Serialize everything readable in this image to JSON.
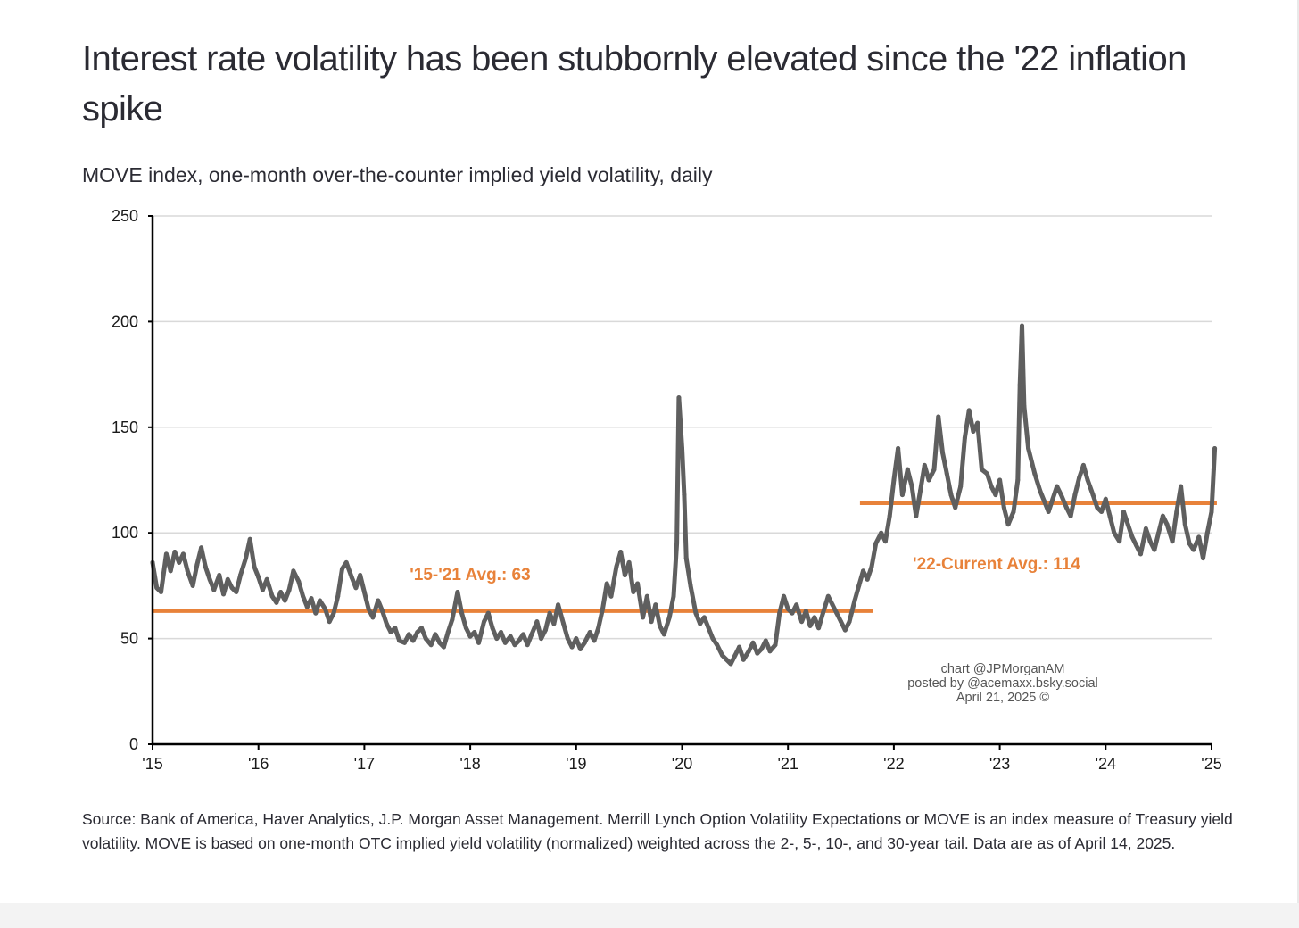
{
  "title": "Interest rate volatility has been stubbornly elevated since the '22 inflation spike",
  "subtitle": "MOVE index, one-month over-the-counter implied yield volatility, daily",
  "footnote": "Source: Bank of America, Haver Analytics, J.P. Morgan Asset Management. Merrill Lynch Option Volatility Expectations or MOVE is an index measure of Treasury yield volatility. MOVE is based on one-month OTC implied yield volatility (normalized) weighted across the 2-, 5-, 10-, and 30-year tail. Data are as of April 14, 2025.",
  "colors": {
    "line": "#5f5f5f",
    "average": "#e8823a",
    "annotation_text": "#e8823a",
    "grid": "#d9d9d9",
    "axis": "#000000",
    "text": "#2b2b33"
  },
  "chart_data": {
    "type": "line",
    "xlabel": "",
    "ylabel": "",
    "ylim": [
      0,
      250
    ],
    "xlim": [
      2015.0,
      2025.0
    ],
    "yticks": [
      0,
      50,
      100,
      150,
      200,
      250
    ],
    "ytick_labels": [
      "0",
      "50",
      "100",
      "150",
      "200",
      "250"
    ],
    "xticks": [
      2015,
      2016,
      2017,
      2018,
      2019,
      2020,
      2021,
      2022,
      2023,
      2024,
      2025
    ],
    "xtick_labels": [
      "'15",
      "'16",
      "'17",
      "'18",
      "'19",
      "'20",
      "'21",
      "'22",
      "'23",
      "'24",
      "'25"
    ],
    "grid": "horizontal",
    "series": [
      {
        "values": [
          [
            2015.0,
            86
          ],
          [
            2015.04,
            74
          ],
          [
            2015.08,
            72
          ],
          [
            2015.13,
            90
          ],
          [
            2015.17,
            82
          ],
          [
            2015.21,
            91
          ],
          [
            2015.25,
            86
          ],
          [
            2015.29,
            90
          ],
          [
            2015.33,
            82
          ],
          [
            2015.38,
            75
          ],
          [
            2015.42,
            85
          ],
          [
            2015.46,
            93
          ],
          [
            2015.5,
            84
          ],
          [
            2015.54,
            78
          ],
          [
            2015.58,
            73
          ],
          [
            2015.63,
            80
          ],
          [
            2015.67,
            71
          ],
          [
            2015.71,
            78
          ],
          [
            2015.75,
            74
          ],
          [
            2015.79,
            72
          ],
          [
            2015.83,
            80
          ],
          [
            2015.88,
            88
          ],
          [
            2015.92,
            97
          ],
          [
            2015.96,
            84
          ],
          [
            2016.0,
            79
          ],
          [
            2016.04,
            73
          ],
          [
            2016.08,
            78
          ],
          [
            2016.13,
            70
          ],
          [
            2016.17,
            67
          ],
          [
            2016.21,
            72
          ],
          [
            2016.25,
            68
          ],
          [
            2016.29,
            73
          ],
          [
            2016.33,
            82
          ],
          [
            2016.38,
            77
          ],
          [
            2016.42,
            70
          ],
          [
            2016.46,
            65
          ],
          [
            2016.5,
            69
          ],
          [
            2016.54,
            62
          ],
          [
            2016.58,
            68
          ],
          [
            2016.63,
            64
          ],
          [
            2016.67,
            58
          ],
          [
            2016.71,
            62
          ],
          [
            2016.75,
            70
          ],
          [
            2016.79,
            83
          ],
          [
            2016.83,
            86
          ],
          [
            2016.88,
            79
          ],
          [
            2016.92,
            74
          ],
          [
            2016.96,
            80
          ],
          [
            2017.0,
            72
          ],
          [
            2017.04,
            64
          ],
          [
            2017.08,
            60
          ],
          [
            2017.13,
            68
          ],
          [
            2017.17,
            63
          ],
          [
            2017.21,
            57
          ],
          [
            2017.25,
            53
          ],
          [
            2017.29,
            55
          ],
          [
            2017.33,
            49
          ],
          [
            2017.38,
            48
          ],
          [
            2017.42,
            52
          ],
          [
            2017.46,
            49
          ],
          [
            2017.5,
            53
          ],
          [
            2017.54,
            55
          ],
          [
            2017.58,
            50
          ],
          [
            2017.63,
            47
          ],
          [
            2017.67,
            52
          ],
          [
            2017.71,
            48
          ],
          [
            2017.75,
            46
          ],
          [
            2017.79,
            53
          ],
          [
            2017.83,
            59
          ],
          [
            2017.88,
            72
          ],
          [
            2017.92,
            62
          ],
          [
            2017.96,
            55
          ],
          [
            2018.0,
            51
          ],
          [
            2018.04,
            53
          ],
          [
            2018.08,
            48
          ],
          [
            2018.13,
            58
          ],
          [
            2018.17,
            62
          ],
          [
            2018.21,
            55
          ],
          [
            2018.25,
            50
          ],
          [
            2018.29,
            53
          ],
          [
            2018.33,
            48
          ],
          [
            2018.38,
            51
          ],
          [
            2018.42,
            47
          ],
          [
            2018.46,
            49
          ],
          [
            2018.5,
            52
          ],
          [
            2018.54,
            47
          ],
          [
            2018.58,
            52
          ],
          [
            2018.63,
            58
          ],
          [
            2018.67,
            50
          ],
          [
            2018.71,
            54
          ],
          [
            2018.75,
            62
          ],
          [
            2018.79,
            57
          ],
          [
            2018.83,
            66
          ],
          [
            2018.88,
            57
          ],
          [
            2018.92,
            50
          ],
          [
            2018.96,
            46
          ],
          [
            2019.0,
            50
          ],
          [
            2019.04,
            45
          ],
          [
            2019.08,
            48
          ],
          [
            2019.13,
            53
          ],
          [
            2019.17,
            49
          ],
          [
            2019.21,
            55
          ],
          [
            2019.25,
            64
          ],
          [
            2019.29,
            76
          ],
          [
            2019.33,
            70
          ],
          [
            2019.38,
            84
          ],
          [
            2019.42,
            91
          ],
          [
            2019.46,
            80
          ],
          [
            2019.5,
            86
          ],
          [
            2019.54,
            72
          ],
          [
            2019.58,
            76
          ],
          [
            2019.63,
            60
          ],
          [
            2019.67,
            70
          ],
          [
            2019.71,
            58
          ],
          [
            2019.75,
            66
          ],
          [
            2019.79,
            56
          ],
          [
            2019.83,
            52
          ],
          [
            2019.88,
            60
          ],
          [
            2019.92,
            70
          ],
          [
            2019.95,
            95
          ],
          [
            2019.97,
            164
          ],
          [
            2020.0,
            140
          ],
          [
            2020.02,
            118
          ],
          [
            2020.04,
            88
          ],
          [
            2020.08,
            75
          ],
          [
            2020.13,
            62
          ],
          [
            2020.17,
            57
          ],
          [
            2020.21,
            60
          ],
          [
            2020.25,
            55
          ],
          [
            2020.29,
            50
          ],
          [
            2020.33,
            47
          ],
          [
            2020.38,
            42
          ],
          [
            2020.42,
            40
          ],
          [
            2020.46,
            38
          ],
          [
            2020.5,
            42
          ],
          [
            2020.54,
            46
          ],
          [
            2020.58,
            40
          ],
          [
            2020.63,
            44
          ],
          [
            2020.67,
            48
          ],
          [
            2020.71,
            43
          ],
          [
            2020.75,
            45
          ],
          [
            2020.79,
            49
          ],
          [
            2020.83,
            44
          ],
          [
            2020.88,
            47
          ],
          [
            2020.92,
            62
          ],
          [
            2020.96,
            70
          ],
          [
            2021.0,
            64
          ],
          [
            2021.04,
            62
          ],
          [
            2021.08,
            66
          ],
          [
            2021.13,
            58
          ],
          [
            2021.17,
            63
          ],
          [
            2021.21,
            56
          ],
          [
            2021.25,
            60
          ],
          [
            2021.29,
            55
          ],
          [
            2021.33,
            62
          ],
          [
            2021.38,
            70
          ],
          [
            2021.42,
            66
          ],
          [
            2021.46,
            62
          ],
          [
            2021.5,
            58
          ],
          [
            2021.54,
            54
          ],
          [
            2021.58,
            58
          ],
          [
            2021.63,
            68
          ],
          [
            2021.67,
            75
          ],
          [
            2021.71,
            82
          ],
          [
            2021.75,
            78
          ],
          [
            2021.79,
            84
          ],
          [
            2021.83,
            95
          ],
          [
            2021.88,
            100
          ],
          [
            2021.92,
            96
          ],
          [
            2021.96,
            108
          ],
          [
            2022.0,
            125
          ],
          [
            2022.04,
            140
          ],
          [
            2022.08,
            118
          ],
          [
            2022.13,
            130
          ],
          [
            2022.17,
            122
          ],
          [
            2022.21,
            108
          ],
          [
            2022.25,
            120
          ],
          [
            2022.29,
            132
          ],
          [
            2022.33,
            125
          ],
          [
            2022.38,
            130
          ],
          [
            2022.42,
            155
          ],
          [
            2022.46,
            138
          ],
          [
            2022.5,
            128
          ],
          [
            2022.54,
            118
          ],
          [
            2022.58,
            112
          ],
          [
            2022.63,
            122
          ],
          [
            2022.67,
            145
          ],
          [
            2022.71,
            158
          ],
          [
            2022.75,
            148
          ],
          [
            2022.79,
            152
          ],
          [
            2022.83,
            130
          ],
          [
            2022.88,
            128
          ],
          [
            2022.92,
            122
          ],
          [
            2022.96,
            118
          ],
          [
            2023.0,
            125
          ],
          [
            2023.04,
            112
          ],
          [
            2023.08,
            104
          ],
          [
            2023.13,
            110
          ],
          [
            2023.17,
            125
          ],
          [
            2023.19,
            170
          ],
          [
            2023.21,
            198
          ],
          [
            2023.23,
            160
          ],
          [
            2023.27,
            140
          ],
          [
            2023.33,
            128
          ],
          [
            2023.38,
            120
          ],
          [
            2023.42,
            115
          ],
          [
            2023.46,
            110
          ],
          [
            2023.5,
            116
          ],
          [
            2023.54,
            122
          ],
          [
            2023.58,
            118
          ],
          [
            2023.63,
            112
          ],
          [
            2023.67,
            108
          ],
          [
            2023.71,
            118
          ],
          [
            2023.75,
            126
          ],
          [
            2023.79,
            132
          ],
          [
            2023.83,
            125
          ],
          [
            2023.88,
            118
          ],
          [
            2023.92,
            112
          ],
          [
            2023.96,
            110
          ],
          [
            2024.0,
            116
          ],
          [
            2024.04,
            108
          ],
          [
            2024.08,
            100
          ],
          [
            2024.13,
            96
          ],
          [
            2024.17,
            110
          ],
          [
            2024.21,
            104
          ],
          [
            2024.25,
            98
          ],
          [
            2024.29,
            94
          ],
          [
            2024.33,
            90
          ],
          [
            2024.38,
            102
          ],
          [
            2024.42,
            96
          ],
          [
            2024.46,
            92
          ],
          [
            2024.5,
            100
          ],
          [
            2024.54,
            108
          ],
          [
            2024.58,
            104
          ],
          [
            2024.63,
            96
          ],
          [
            2024.67,
            110
          ],
          [
            2024.71,
            122
          ],
          [
            2024.75,
            104
          ],
          [
            2024.79,
            95
          ],
          [
            2024.83,
            92
          ],
          [
            2024.88,
            98
          ],
          [
            2024.92,
            88
          ],
          [
            2024.96,
            100
          ],
          [
            2025.0,
            110
          ],
          [
            2025.02,
            130
          ],
          [
            2025.03,
            140
          ]
        ]
      }
    ],
    "reference_lines": [
      {
        "label": "'15-'21 Avg.: 63",
        "value": 63,
        "x_start": 2015.0,
        "x_end": 2021.8
      },
      {
        "label": "'22-Current Avg.: 114",
        "value": 114,
        "x_start": 2021.68,
        "x_end": 2025.05
      }
    ],
    "annotations": [
      "chart @JPMorganAM",
      "posted by @acemaxx.bsky.social",
      "April 21, 2025 ©"
    ]
  }
}
